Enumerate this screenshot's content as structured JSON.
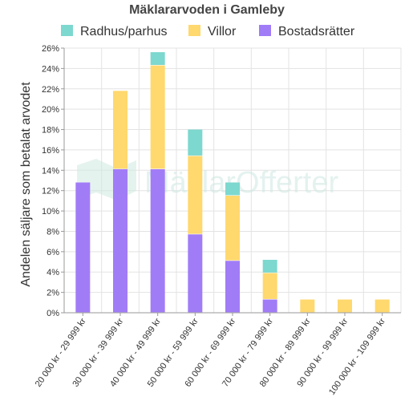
{
  "chart_data": {
    "type": "bar",
    "stacked": true,
    "title": "Mäklararvoden i Gamleby",
    "ylabel": "Andelen säljare som betalat arvodet",
    "xlabel": "",
    "ylim": [
      0,
      26
    ],
    "ytick_step": 2,
    "ytick_suffix": "%",
    "grid": true,
    "legend_position": "top",
    "categories": [
      "20 000 kr - 29 999 kr",
      "30 000 kr - 39 999 kr",
      "40 000 kr - 49 999 kr",
      "50 000 kr - 59 999 kr",
      "60 000 kr - 69 999 kr",
      "70 000 kr - 79 999 kr",
      "80 000 kr - 89 999 kr",
      "90 000 kr - 99 999 kr",
      "100 000 kr - 109 999 kr"
    ],
    "series": [
      {
        "name": "Bostadsrätter",
        "color": "#a17cf7",
        "values": [
          12.8,
          14.1,
          14.1,
          7.7,
          5.1,
          1.3,
          0,
          0,
          0
        ]
      },
      {
        "name": "Villor",
        "color": "#ffd86e",
        "values": [
          0,
          7.7,
          10.2,
          7.7,
          6.4,
          2.6,
          1.3,
          1.3,
          1.3
        ]
      },
      {
        "name": "Radhus/parhus",
        "color": "#7dd8cf",
        "values": [
          0,
          0,
          1.3,
          2.6,
          1.3,
          1.3,
          0,
          0,
          0
        ]
      }
    ],
    "legend_order": [
      "Radhus/parhus",
      "Villor",
      "Bostadsrätter"
    ]
  },
  "watermark": {
    "text": "MäklarOfferter"
  }
}
